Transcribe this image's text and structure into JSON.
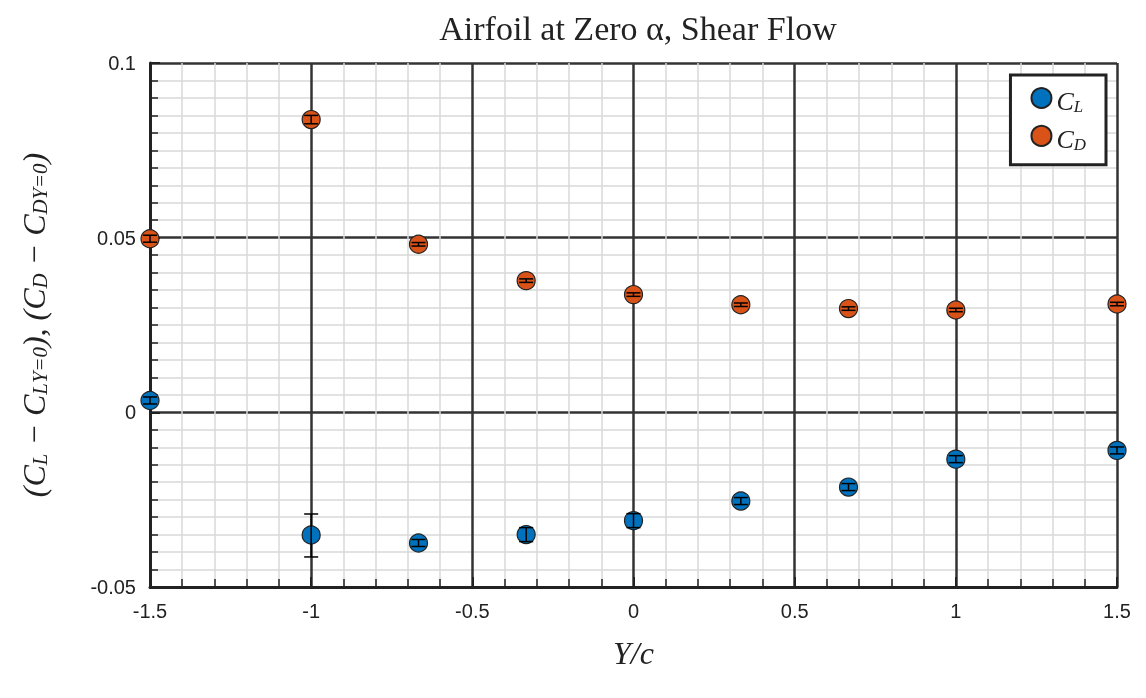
{
  "chart_data": {
    "type": "scatter",
    "title": "Airfoil at Zero α, Shear Flow",
    "xlabel": "Y/c",
    "ylabel": "(C$_{L}$ − C$_{L}$$_{Y=0}$), (C$_{D}$ − C$_{D}$$_{Y=0}$)",
    "x": [
      -1.5,
      -1,
      -0.667,
      -0.333,
      0,
      0.333,
      0.667,
      1,
      1.5
    ],
    "series": [
      {
        "name": "C$_{L}$",
        "color": "#0072bd",
        "values": [
          0.0034,
          -0.0351,
          -0.0374,
          -0.035,
          -0.031,
          -0.0254,
          -0.0214,
          -0.0134,
          -0.0109
        ],
        "errors": [
          0.001,
          [
            -0.0414,
            -0.0291
          ],
          0.001,
          0.002,
          0.002,
          0.001,
          0.001,
          0.001,
          0.001
        ]
      },
      {
        "name": "C$_{D}$",
        "color": "#d95319",
        "values": [
          0.0497,
          0.0838,
          0.0481,
          0.0377,
          0.0337,
          0.0308,
          0.0297,
          0.0293,
          0.031
        ],
        "errors": [
          0.001,
          0.0012,
          0.0005,
          0.0005,
          0.0005,
          0.0005,
          0.0005,
          0.0005,
          0.0005
        ]
      }
    ],
    "xlim": [
      -1.5,
      1.5
    ],
    "xticks": [
      -1.5,
      -1,
      -0.5,
      0,
      0.5,
      1,
      1.5
    ],
    "ylim": [
      -0.05,
      0.1
    ],
    "yticks": [
      -0.05,
      0,
      0.05,
      0.1
    ],
    "grid": true,
    "legend": "top right",
    "marker": "circle"
  }
}
